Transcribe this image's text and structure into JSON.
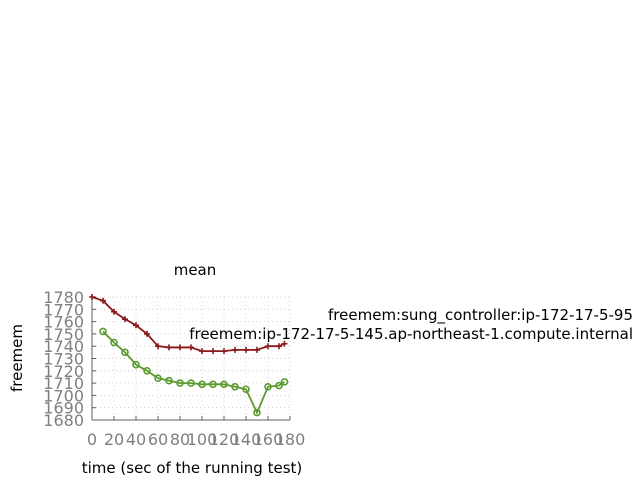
{
  "chart_data": {
    "type": "line",
    "title": "mean",
    "xlabel": "time (sec of the running test)",
    "ylabel": "freemem",
    "xlim": [
      0,
      180
    ],
    "ylim": [
      1680,
      1780
    ],
    "xticks": [
      0,
      20,
      40,
      60,
      80,
      100,
      120,
      140,
      160,
      180
    ],
    "yticks": [
      1680,
      1690,
      1700,
      1710,
      1720,
      1730,
      1740,
      1750,
      1760,
      1770,
      1780
    ],
    "grid": true,
    "legend_position": "right",
    "series": [
      {
        "name": "freemem:sung_controller:ip-172-17-5-95",
        "legend_text": "freemem:sung_controller:ip-172-17-5-95",
        "color": "#8b1a1a",
        "marker": "plus",
        "x": [
          0,
          10,
          20,
          30,
          40,
          50,
          60,
          70,
          80,
          90,
          100,
          110,
          120,
          130,
          140,
          150,
          160,
          170,
          175
        ],
        "values": [
          1780,
          1777,
          1768,
          1762,
          1757,
          1750,
          1740,
          1739,
          1739,
          1739,
          1736,
          1736,
          1736,
          1737,
          1737,
          1737,
          1740,
          1740,
          1742
        ]
      },
      {
        "name": "freemem:ip-172-17-5-145.ap-northeast-1.compute.internal",
        "legend_text": "freemem:ip-172-17-5-145.ap-northeast-1.compute.internal",
        "color": "#5a9a2e",
        "marker": "circle",
        "x": [
          10,
          20,
          30,
          40,
          50,
          60,
          70,
          80,
          90,
          100,
          110,
          120,
          130,
          140,
          150,
          160,
          170,
          175
        ],
        "values": [
          1752,
          1743,
          1735,
          1725,
          1720,
          1714,
          1712,
          1710,
          1710,
          1709,
          1709,
          1709,
          1707,
          1705,
          1686,
          1707,
          1708,
          1711
        ]
      }
    ]
  }
}
